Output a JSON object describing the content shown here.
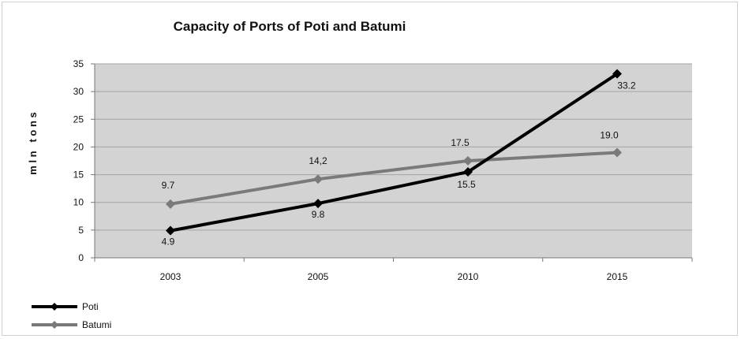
{
  "chart_data": {
    "type": "line",
    "title": "Capacity of Ports of Poti and Batumi",
    "xlabel": "",
    "ylabel": "m l n   t o n s",
    "categories": [
      "2003",
      "2005",
      "2010",
      "2015"
    ],
    "ylim": [
      0,
      35
    ],
    "yticks": [
      "0",
      "5",
      "10",
      "15",
      "20",
      "25",
      "30",
      "35"
    ],
    "grid": true,
    "legend_position": "bottom-left",
    "series": [
      {
        "name": "Poti",
        "values": [
          4.9,
          9.8,
          15.5,
          33.2
        ],
        "labels": [
          "4.9",
          "9.8",
          "15.5",
          "33.2"
        ],
        "color": "#000000"
      },
      {
        "name": "Batumi",
        "values": [
          9.7,
          14.2,
          17.5,
          19.0
        ],
        "labels": [
          "9.7",
          "14,2",
          "17.5",
          "19.0"
        ],
        "color": "#7a7a7a"
      }
    ],
    "plot_background": "#d3d3d3"
  }
}
